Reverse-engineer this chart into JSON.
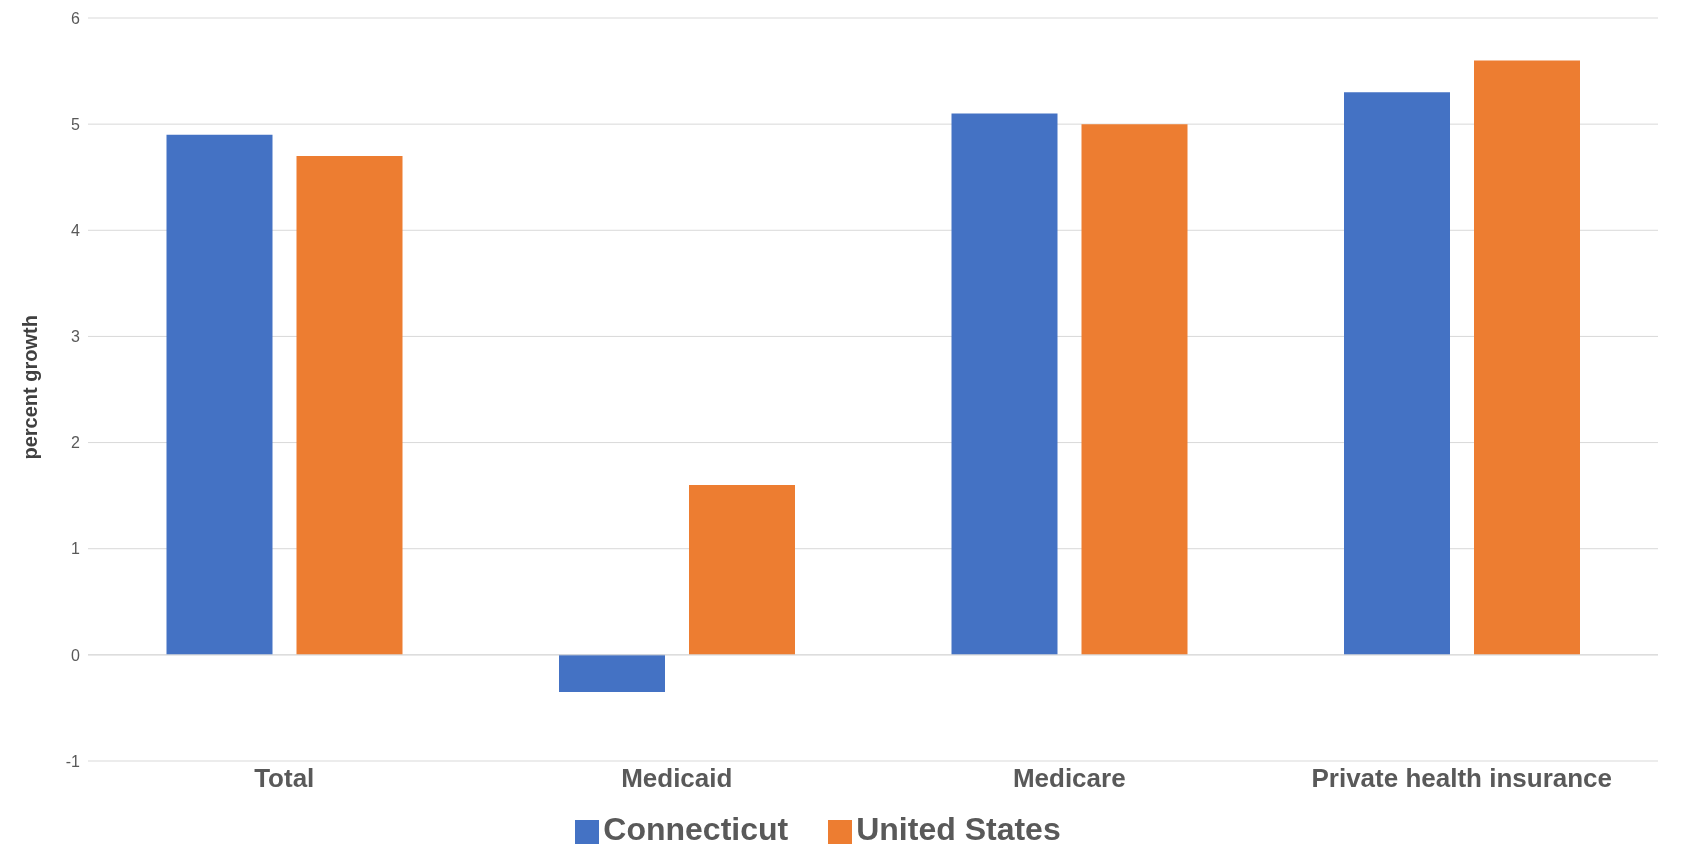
{
  "chart_data": {
    "type": "bar",
    "ylabel": "percent growth",
    "categories": [
      "Total",
      "Medicaid",
      "Medicare",
      "Private health insurance"
    ],
    "series": [
      {
        "name": "Connecticut",
        "color": "#4472c4",
        "values": [
          4.9,
          -0.35,
          5.1,
          5.3
        ]
      },
      {
        "name": "United States",
        "color": "#ed7d31",
        "values": [
          4.7,
          1.6,
          5.0,
          5.6
        ]
      }
    ],
    "ylim": [
      -1,
      6
    ],
    "yticks": [
      -1,
      0,
      1,
      2,
      3,
      4,
      5,
      6
    ],
    "grid": "y",
    "legend": "bottom"
  }
}
